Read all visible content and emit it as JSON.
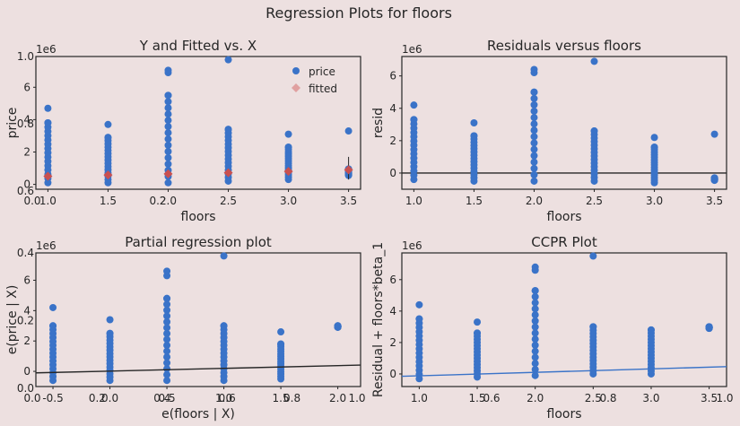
{
  "suptitle": "Regression Plots for floors",
  "colors": {
    "background": "#ede0e0",
    "points": "#3a73c8",
    "fitted": "#c85050",
    "fitted_legend": "#e0a0a0",
    "line_black": "#262626",
    "line_blue": "#3a73c8"
  },
  "chart_data": [
    {
      "type": "scatter",
      "title": "Y and Fitted vs. X",
      "xlabel": "floors",
      "ylabel": "price",
      "offset_label": "1e6",
      "xticks": [
        "1.0",
        "1.5",
        "2.0",
        "2.5",
        "3.0",
        "3.5"
      ],
      "yticks": [
        "0",
        "2",
        "4",
        "6"
      ],
      "xlim": [
        0.9,
        3.6
      ],
      "ylim": [
        -0.3,
        7.9
      ],
      "legend": {
        "placement": "top-right",
        "entries": [
          "price",
          "fitted"
        ]
      },
      "series": [
        {
          "name": "price",
          "columns": [
            {
              "x": 1.0,
              "ymin": 0.1,
              "ymax": 3.8,
              "outliers": [
                4.7
              ]
            },
            {
              "x": 1.5,
              "ymin": 0.1,
              "ymax": 2.9,
              "outliers": [
                3.7
              ]
            },
            {
              "x": 2.0,
              "ymin": 0.1,
              "ymax": 5.5,
              "outliers": [
                6.9,
                7.05
              ]
            },
            {
              "x": 2.5,
              "ymin": 0.2,
              "ymax": 3.4,
              "outliers": [
                7.7
              ]
            },
            {
              "x": 3.0,
              "ymin": 0.3,
              "ymax": 2.3,
              "outliers": [
                3.1
              ]
            },
            {
              "x": 3.5,
              "ymin": 0.55,
              "ymax": 0.95,
              "outliers": [
                3.3
              ]
            }
          ]
        },
        {
          "name": "fitted",
          "points": [
            {
              "x": 1.0,
              "y": 0.5,
              "lo": 0.4,
              "hi": 0.6
            },
            {
              "x": 1.5,
              "y": 0.58,
              "lo": 0.5,
              "hi": 0.68
            },
            {
              "x": 2.0,
              "y": 0.65,
              "lo": 0.55,
              "hi": 0.75
            },
            {
              "x": 2.5,
              "y": 0.72,
              "lo": 0.6,
              "hi": 0.85
            },
            {
              "x": 3.0,
              "y": 0.8,
              "lo": 0.65,
              "hi": 0.95
            },
            {
              "x": 3.5,
              "y": 0.9,
              "lo": 0.3,
              "hi": 1.7
            }
          ]
        }
      ],
      "underlay": {
        "xticks": [
          "0.0",
          "0.2"
        ],
        "yticks": [
          "1.0",
          "0.8",
          "0.6"
        ]
      }
    },
    {
      "type": "scatter",
      "title": "Residuals versus floors",
      "xlabel": "floors",
      "ylabel": "resid",
      "offset_label": "1e6",
      "xticks": [
        "1.0",
        "1.5",
        "2.0",
        "2.5",
        "3.0",
        "3.5"
      ],
      "yticks": [
        "0",
        "2",
        "4",
        "6"
      ],
      "xlim": [
        0.9,
        3.6
      ],
      "ylim": [
        -1.0,
        7.2
      ],
      "hline": 0,
      "series": [
        {
          "name": "resid",
          "columns": [
            {
              "x": 1.0,
              "ymin": -0.4,
              "ymax": 3.3,
              "outliers": [
                4.2
              ]
            },
            {
              "x": 1.5,
              "ymin": -0.5,
              "ymax": 2.3,
              "outliers": [
                3.1
              ]
            },
            {
              "x": 2.0,
              "ymin": -0.5,
              "ymax": 5.0,
              "outliers": [
                6.2,
                6.4
              ]
            },
            {
              "x": 2.5,
              "ymin": -0.5,
              "ymax": 2.6,
              "outliers": [
                6.9
              ]
            },
            {
              "x": 3.0,
              "ymin": -0.6,
              "ymax": 1.6,
              "outliers": [
                2.2
              ]
            },
            {
              "x": 3.5,
              "ymin": -0.45,
              "ymax": -0.3,
              "outliers": [
                2.4
              ]
            }
          ]
        }
      ]
    },
    {
      "type": "scatter",
      "title": "Partial regression plot",
      "xlabel": "e(floors | X)",
      "ylabel": "e(price | X)",
      "offset_label": "1e6",
      "xticks": [
        "-0.5",
        "0.0",
        "0.5",
        "1.0",
        "1.5",
        "2.0"
      ],
      "yticks": [
        "0",
        "2",
        "4",
        "6"
      ],
      "xlim": [
        -0.65,
        2.2
      ],
      "ylim": [
        -1.0,
        7.8
      ],
      "fit_line": {
        "intercept": -0.1,
        "slope": 0.18
      },
      "series": [
        {
          "name": "e(price | X)",
          "columns": [
            {
              "x": -0.5,
              "ymin": -0.6,
              "ymax": 3.0,
              "outliers": [
                4.2
              ]
            },
            {
              "x": 0.0,
              "ymin": -0.6,
              "ymax": 2.5,
              "outliers": [
                3.4
              ]
            },
            {
              "x": 0.5,
              "ymin": -0.6,
              "ymax": 4.8,
              "outliers": [
                6.3,
                6.6
              ]
            },
            {
              "x": 1.0,
              "ymin": -0.6,
              "ymax": 3.0,
              "outliers": [
                7.6
              ]
            },
            {
              "x": 1.5,
              "ymin": -0.5,
              "ymax": 1.8,
              "outliers": [
                2.6
              ]
            },
            {
              "x": 2.0,
              "ymin": 2.9,
              "ymax": 3.0,
              "outliers": []
            }
          ]
        }
      ],
      "underlay": {
        "xticks": [
          "0.0",
          "0.2",
          "0.4",
          "0.6",
          "0.8",
          "1.0"
        ],
        "yticks": [
          "0.4",
          "0.2",
          "0.0"
        ]
      }
    },
    {
      "type": "scatter",
      "title": "CCPR Plot",
      "xlabel": "floors",
      "ylabel": "Residual + floors*beta_1",
      "offset_label": "1e6",
      "xticks": [
        "1.0",
        "1.5",
        "2.0",
        "2.5",
        "3.0",
        "3.5"
      ],
      "yticks": [
        "0",
        "2",
        "4",
        "6"
      ],
      "xlim": [
        0.85,
        3.65
      ],
      "ylim": [
        -0.8,
        7.7
      ],
      "fit_line": {
        "intercept": -0.15,
        "slope": 0.22
      },
      "series": [
        {
          "name": "ccpr",
          "columns": [
            {
              "x": 1.0,
              "ymin": -0.3,
              "ymax": 3.5,
              "outliers": [
                4.4
              ]
            },
            {
              "x": 1.5,
              "ymin": -0.2,
              "ymax": 2.6,
              "outliers": [
                3.3
              ]
            },
            {
              "x": 2.0,
              "ymin": -0.1,
              "ymax": 5.3,
              "outliers": [
                6.6,
                6.8
              ]
            },
            {
              "x": 2.5,
              "ymin": 0.0,
              "ymax": 3.0,
              "outliers": [
                7.5
              ]
            },
            {
              "x": 3.0,
              "ymin": 0.0,
              "ymax": 2.8,
              "outliers": []
            },
            {
              "x": 3.5,
              "ymin": 2.9,
              "ymax": 3.0,
              "outliers": []
            }
          ]
        }
      ],
      "underlay": {
        "xticks": [
          "0.6",
          "0.8",
          "1.0"
        ],
        "yticks": []
      }
    }
  ]
}
